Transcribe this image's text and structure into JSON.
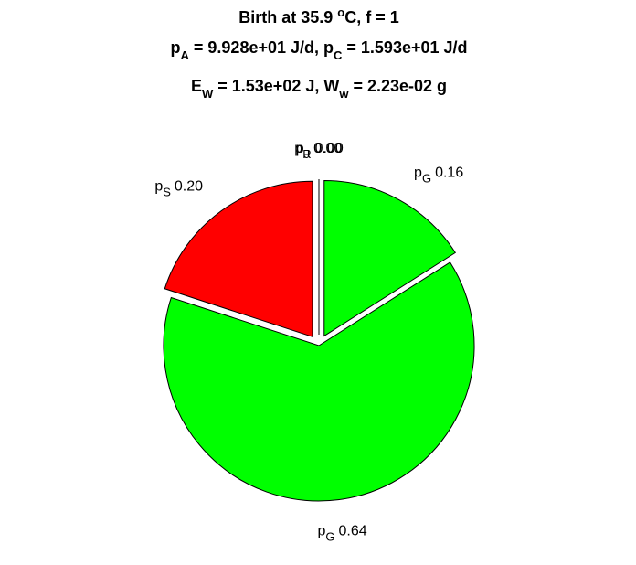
{
  "chart_data": {
    "type": "pie",
    "title": [
      [
        {
          "text": "Birth at 35.9 "
        },
        {
          "sup": "o"
        },
        {
          "text": "C, f = 1"
        }
      ],
      [
        {
          "text": "p"
        },
        {
          "sub": "A"
        },
        {
          "text": " = 9.928e+01 J/d, p"
        },
        {
          "sub": "C"
        },
        {
          "text": " = 1.593e+01 J/d"
        }
      ],
      [
        {
          "text": "E"
        },
        {
          "sub": "W"
        },
        {
          "text": " = 1.53e+02 J, W"
        },
        {
          "sub": "w"
        },
        {
          "text": " = 2.23e-02 g"
        }
      ]
    ],
    "categories": [
      [
        "p",
        "G"
      ],
      [
        "p",
        "G"
      ],
      [
        "p",
        "S"
      ],
      [
        "p",
        "R"
      ],
      [
        "p",
        "J"
      ]
    ],
    "values": [
      0.16,
      0.64,
      0.2,
      0,
      0
    ],
    "value_labels": [
      "0.16",
      "0.64",
      "0.20",
      "0.00",
      "0.00"
    ],
    "colors": [
      "#00ff00",
      "#00ff00",
      "#ff0000",
      "#ffffff",
      "#ffffff"
    ],
    "explode": [
      true,
      false,
      true,
      true,
      true
    ],
    "direction": "clockwise",
    "start": "top"
  }
}
